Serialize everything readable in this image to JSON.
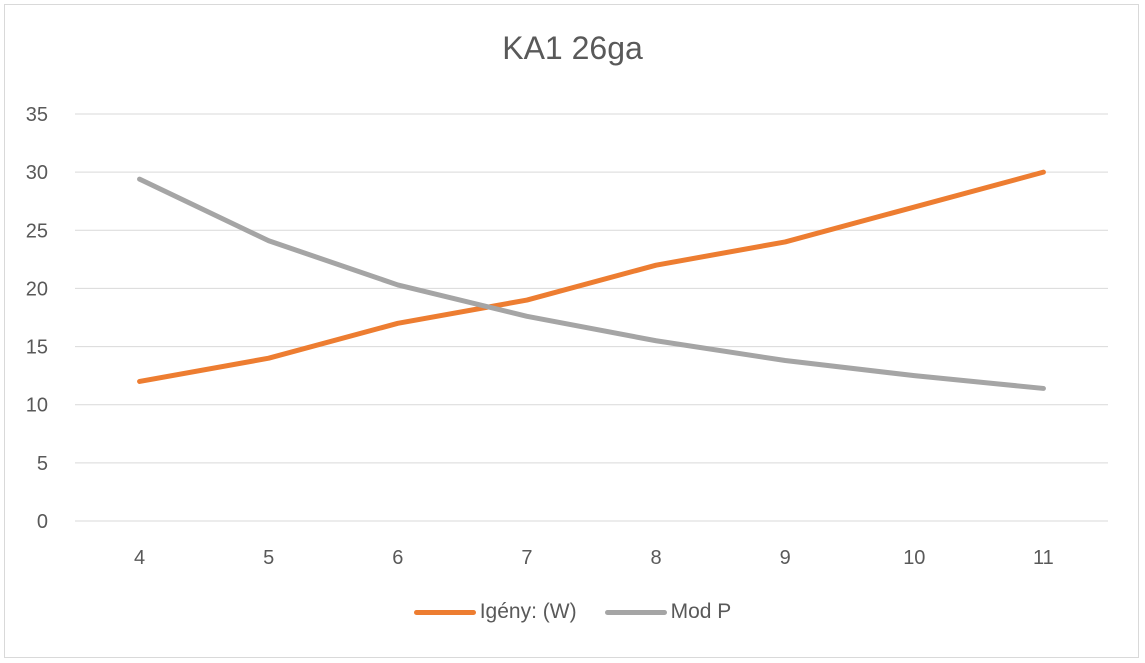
{
  "chart_data": {
    "type": "line",
    "title": "KA1 26ga",
    "categories": [
      "4",
      "5",
      "6",
      "7",
      "8",
      "9",
      "10",
      "11"
    ],
    "series": [
      {
        "name": "Igény: (W)",
        "color": "#ED7D31",
        "values": [
          12,
          14,
          17,
          19,
          22,
          24,
          27,
          30
        ]
      },
      {
        "name": "Mod P",
        "color": "#A5A5A5",
        "values": [
          29.4,
          24.1,
          20.3,
          17.6,
          15.5,
          13.8,
          12.5,
          11.4
        ]
      }
    ],
    "ylim": [
      0,
      35
    ],
    "yticks": [
      "0",
      "5",
      "10",
      "15",
      "20",
      "25",
      "30",
      "35"
    ],
    "xlabel": "",
    "ylabel": "",
    "grid": true,
    "legend": "bottom"
  }
}
